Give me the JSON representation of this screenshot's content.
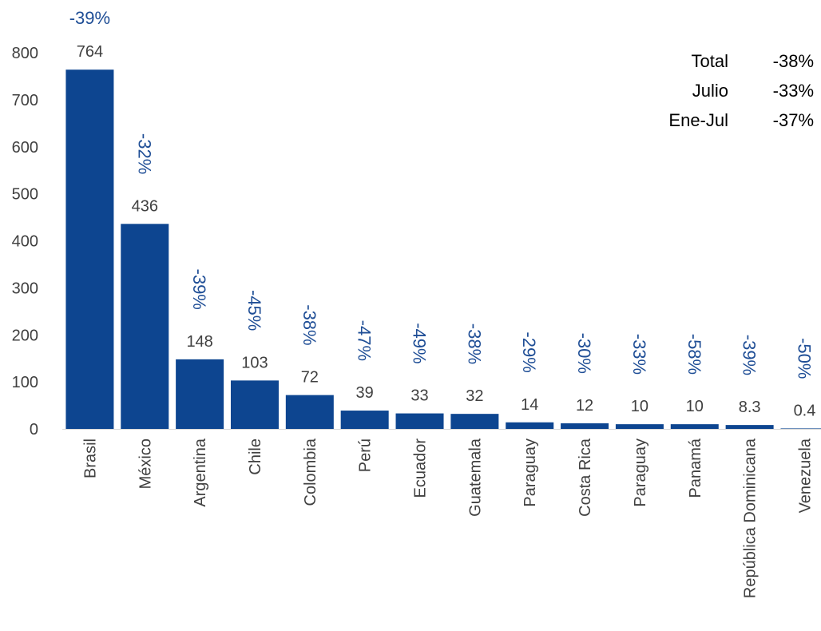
{
  "chart_data": {
    "type": "bar",
    "categories": [
      "Brasil",
      "México",
      "Argentina",
      "Chile",
      "Colombia",
      "Perú",
      "Ecuador",
      "Guatemala",
      "Paraguay",
      "Costa Rica",
      "Paraguay",
      "Panamá",
      "República Dominicana",
      "Venezuela"
    ],
    "values": [
      764,
      436,
      148,
      103,
      72,
      39,
      33,
      32,
      14,
      12,
      10,
      10,
      8.3,
      0.4
    ],
    "value_labels": [
      "764",
      "436",
      "148",
      "103",
      "72",
      "39",
      "33",
      "32",
      "14",
      "12",
      "10",
      "10",
      "8.3",
      "0.4"
    ],
    "change_labels": [
      "-39%",
      "-32%",
      "-39%",
      "-45%",
      "-38%",
      "-47%",
      "-49%",
      "-38%",
      "-29%",
      "-30%",
      "-33%",
      "-58%",
      "-39%",
      "-50%"
    ],
    "ylim": [
      0,
      800
    ],
    "yticks": [
      "0",
      "100",
      "200",
      "300",
      "400",
      "500",
      "600",
      "700",
      "800"
    ],
    "grid": false,
    "bar_color": "#0d4590",
    "change_label_color": "#1f4e96",
    "summary": [
      {
        "label": "Total",
        "value": "-38%"
      },
      {
        "label": "Julio",
        "value": "-33%"
      },
      {
        "label": "Ene-Jul",
        "value": "-37%"
      }
    ]
  }
}
